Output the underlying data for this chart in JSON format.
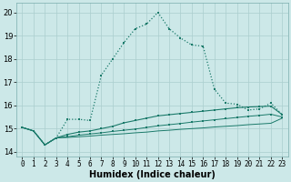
{
  "xlabel": "Humidex (Indice chaleur)",
  "background_color": "#cce8e8",
  "grid_color": "#aacece",
  "line_color": "#1a7a6a",
  "x_ticks": [
    0,
    1,
    2,
    3,
    4,
    5,
    6,
    7,
    8,
    9,
    10,
    11,
    12,
    13,
    14,
    15,
    16,
    17,
    18,
    19,
    20,
    21,
    22,
    23
  ],
  "ylim": [
    13.8,
    20.4
  ],
  "xlim": [
    -0.5,
    23.5
  ],
  "series1_y": [
    15.05,
    14.9,
    14.3,
    14.6,
    15.4,
    15.4,
    15.35,
    17.3,
    18.0,
    18.7,
    19.3,
    19.5,
    20.0,
    19.3,
    18.9,
    18.6,
    18.55,
    16.7,
    16.1,
    16.05,
    15.8,
    15.85,
    16.1,
    15.6
  ],
  "series2_y": [
    15.05,
    14.9,
    14.3,
    14.6,
    14.75,
    14.85,
    14.9,
    15.0,
    15.1,
    15.25,
    15.35,
    15.45,
    15.55,
    15.6,
    15.65,
    15.7,
    15.75,
    15.8,
    15.85,
    15.9,
    15.93,
    15.95,
    15.97,
    15.6
  ],
  "series3_y": [
    15.05,
    14.9,
    14.3,
    14.6,
    14.65,
    14.72,
    14.77,
    14.82,
    14.88,
    14.93,
    14.98,
    15.05,
    15.12,
    15.17,
    15.22,
    15.28,
    15.33,
    15.38,
    15.43,
    15.48,
    15.53,
    15.57,
    15.62,
    15.5
  ],
  "series4_y": [
    15.05,
    14.9,
    14.3,
    14.6,
    14.62,
    14.65,
    14.68,
    14.72,
    14.75,
    14.78,
    14.82,
    14.85,
    14.9,
    14.93,
    14.97,
    15.0,
    15.03,
    15.07,
    15.1,
    15.13,
    15.17,
    15.2,
    15.23,
    15.45
  ],
  "yticks": [
    14,
    15,
    16,
    17,
    18,
    19,
    20
  ],
  "font_size_label": 7,
  "font_size_tick": 5.5
}
